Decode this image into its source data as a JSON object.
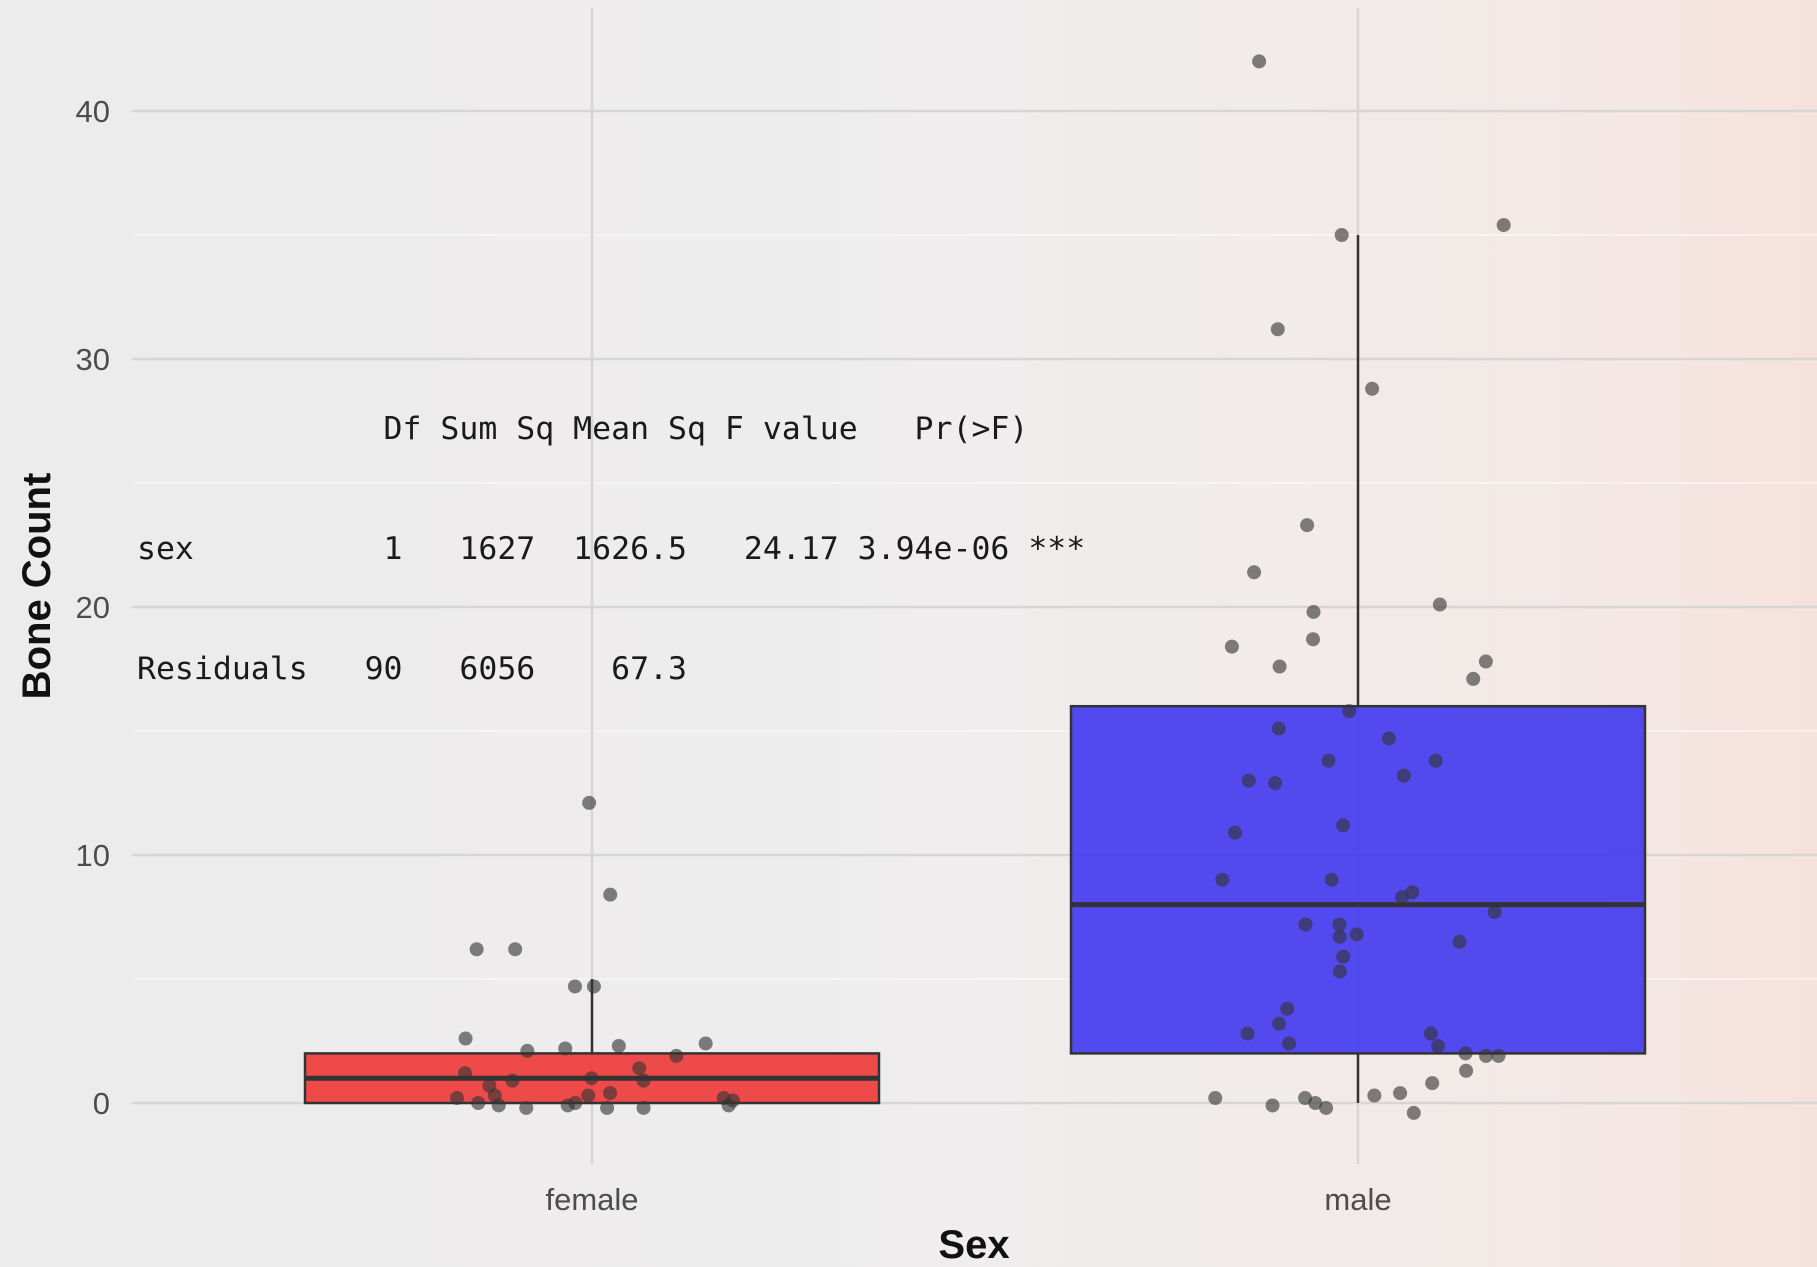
{
  "chart_data": {
    "type": "boxplot",
    "title": "",
    "xlabel": "Sex",
    "ylabel": "Bone Count",
    "ylim": [
      -3.5,
      44
    ],
    "y_ticks": [
      0,
      10,
      20,
      30,
      40
    ],
    "grid": true,
    "legend": "none",
    "categories": [
      "female",
      "male"
    ],
    "boxes": [
      {
        "category": "female",
        "fill": "#ee3333",
        "whisker_low": 0,
        "q1": 0,
        "median": 1,
        "q3": 2,
        "whisker_high": 5
      },
      {
        "category": "male",
        "fill": "#3b33ee",
        "whisker_low": 0,
        "q1": 2,
        "median": 8,
        "q3": 16,
        "whisker_high": 35
      }
    ],
    "points": [
      {
        "category": "female",
        "jitter_y": [
          12.1,
          8.4,
          6.2,
          6.2,
          4.7,
          4.7,
          2.6,
          2.4,
          2.3,
          2.2,
          2.1,
          1.9,
          1.4,
          1.2,
          1.0,
          0.9,
          0.9,
          0.7,
          0.4,
          0.3,
          0.3,
          0.2,
          0.2,
          0.1,
          0.0,
          0.0,
          -0.1,
          -0.1,
          -0.1,
          -0.2,
          -0.2,
          -0.2
        ]
      },
      {
        "category": "male",
        "jitter_y": [
          42.0,
          35.4,
          35.0,
          31.2,
          28.8,
          23.3,
          21.4,
          20.1,
          19.8,
          18.7,
          18.4,
          17.8,
          17.6,
          17.1,
          15.8,
          15.1,
          14.7,
          13.8,
          13.8,
          13.2,
          13.0,
          12.9,
          11.2,
          10.9,
          9.0,
          9.0,
          8.5,
          8.3,
          7.7,
          7.2,
          7.2,
          6.8,
          6.7,
          6.5,
          5.9,
          5.3,
          3.8,
          3.2,
          2.8,
          2.8,
          2.4,
          2.3,
          2.0,
          1.9,
          1.9,
          1.3,
          0.8,
          0.4,
          0.3,
          0.2,
          0.2,
          0.0,
          -0.1,
          -0.2,
          -0.4
        ]
      }
    ],
    "annotation": {
      "rows": [
        "             Df Sum Sq Mean Sq F value   Pr(>F)    ",
        "sex          1   1627  1626.5   24.17 3.94e-06 ***",
        "Residuals   90   6056    67.3                  "
      ]
    }
  }
}
